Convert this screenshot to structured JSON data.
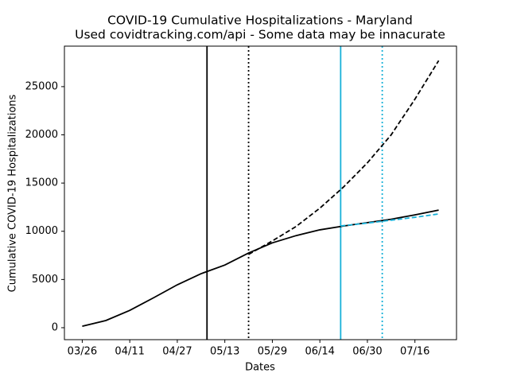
{
  "chart_data": {
    "type": "line",
    "title": "COVID-19 Cumulative Hospitalizations - Maryland",
    "subtitle": "Used covidtracking.com/api - Some data may be innacurate",
    "x_label": "Dates",
    "y_label": "Cumulative COVID-19 Hospitalizations",
    "xlim": [
      "03/20",
      "07/30"
    ],
    "ylim": [
      -1240,
      29200
    ],
    "xticks": [
      "03/26",
      "04/11",
      "04/27",
      "05/13",
      "05/29",
      "06/14",
      "06/30",
      "07/16"
    ],
    "yticks": [
      0,
      5000,
      10000,
      15000,
      20000,
      25000
    ],
    "series": [
      {
        "color": "#000000",
        "style": "solid",
        "x": [
          "03/26",
          "04/03",
          "04/11",
          "04/19",
          "04/27",
          "05/05",
          "05/13",
          "05/21",
          "05/29",
          "06/06",
          "06/14",
          "06/22",
          "06/30",
          "07/08",
          "07/16",
          "07/24"
        ],
        "values": [
          150,
          750,
          1800,
          3100,
          4450,
          5600,
          6500,
          7750,
          8800,
          9550,
          10150,
          10550,
          10900,
          11250,
          11700,
          12200
        ]
      },
      {
        "color": "#000000",
        "style": "dashed",
        "x": [
          "05/21",
          "05/29",
          "06/06",
          "06/14",
          "06/22",
          "06/30",
          "07/08",
          "07/16",
          "07/24"
        ],
        "values": [
          7600,
          9000,
          10500,
          12400,
          14600,
          17100,
          20000,
          23700,
          27700
        ]
      },
      {
        "color": "#17b0d8",
        "style": "dashed",
        "x": [
          "06/21",
          "06/30",
          "07/08",
          "07/16",
          "07/24"
        ],
        "values": [
          10550,
          10850,
          11150,
          11450,
          11800
        ]
      }
    ],
    "vlines": [
      {
        "x": "05/07",
        "color": "#000000",
        "style": "solid"
      },
      {
        "x": "05/21",
        "color": "#000000",
        "style": "dotted"
      },
      {
        "x": "06/21",
        "color": "#17b0d8",
        "style": "solid"
      },
      {
        "x": "07/05",
        "color": "#17b0d8",
        "style": "dotted"
      }
    ]
  }
}
